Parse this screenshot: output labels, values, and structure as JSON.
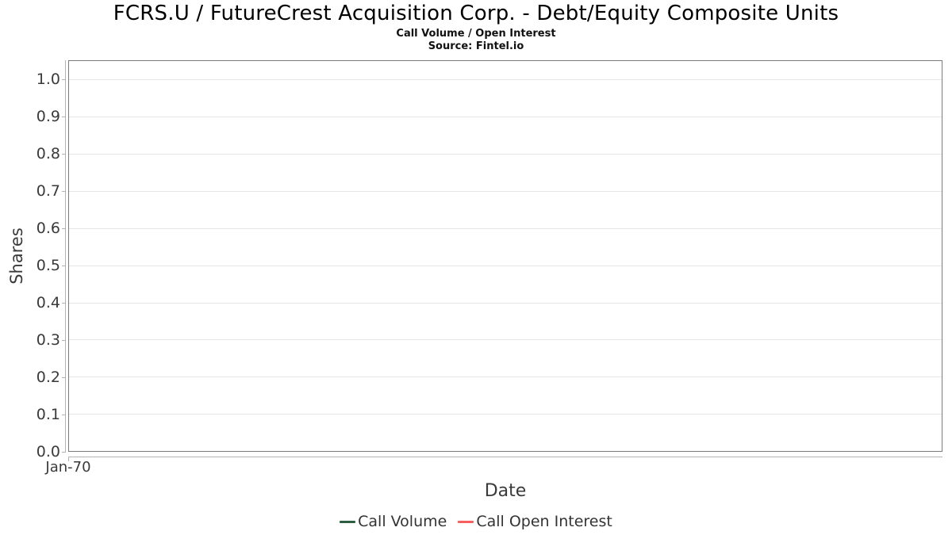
{
  "title": "FCRS.U / FutureCrest Acquisition Corp. - Debt/Equity Composite Units",
  "subtitle": "Call Volume / Open Interest",
  "source": "Source: Fintel.io",
  "y_axis": {
    "title": "Shares",
    "tick_labels": [
      "1.0",
      "0.9",
      "0.8",
      "0.7",
      "0.6",
      "0.5",
      "0.4",
      "0.3",
      "0.2",
      "0.1",
      "0.0"
    ]
  },
  "x_axis": {
    "title": "Date",
    "tick_labels": [
      "Jan-70"
    ]
  },
  "legend": {
    "items": [
      {
        "label": "Call Volume",
        "color": "#2e5e41"
      },
      {
        "label": "Call Open Interest",
        "color": "#f95f5f"
      }
    ]
  },
  "colors": {
    "grid": "#e6e6e6",
    "plot_border": "#7a7a7a",
    "axis_line": "#b3b3b3",
    "tick_text": "#3a3a3a",
    "title_text": "#000000"
  },
  "chart_data": {
    "type": "line",
    "title": "FCRS.U / FutureCrest Acquisition Corp. - Debt/Equity Composite Units",
    "subtitle": "Call Volume / Open Interest",
    "source": "Source: Fintel.io",
    "xlabel": "Date",
    "ylabel": "Shares",
    "x_ticks": [
      "Jan-70"
    ],
    "y_ticks": [
      1.0,
      0.9,
      0.8,
      0.7,
      0.6,
      0.5,
      0.4,
      0.3,
      0.2,
      0.1,
      0.0
    ],
    "ylim": [
      0.0,
      1.05
    ],
    "grid": true,
    "legend_position": "bottom",
    "series": [
      {
        "name": "Call Volume",
        "color": "#2e5e41",
        "x": [],
        "values": []
      },
      {
        "name": "Call Open Interest",
        "color": "#f95f5f",
        "x": [],
        "values": []
      }
    ]
  }
}
